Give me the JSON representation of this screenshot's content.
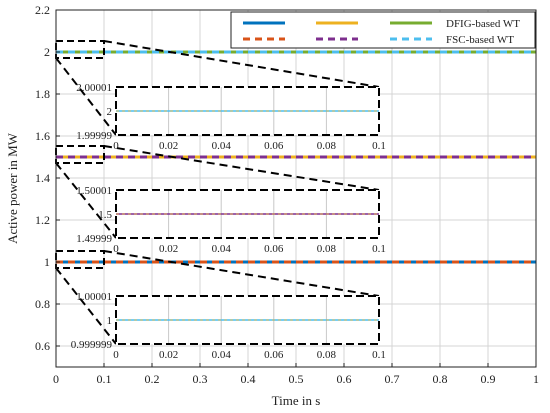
{
  "chart_data": {
    "type": "line",
    "xlabel": "Time in s",
    "ylabel": "Active power in MW",
    "xlim": [
      0,
      1
    ],
    "ylim": [
      0.5,
      2.2
    ],
    "x_ticks": [
      "0",
      "0.1",
      "0.2",
      "0.3",
      "0.4",
      "0.5",
      "0.6",
      "0.7",
      "0.8",
      "0.9",
      "1"
    ],
    "y_ticks": [
      "0.6",
      "0.8",
      "1",
      "1.2",
      "1.4",
      "1.6",
      "1.8",
      "2",
      "2.2"
    ],
    "grid": true,
    "legend_position": "top-right",
    "legend": {
      "entries": [
        {
          "color": "#0072bd",
          "dash": "solid",
          "label": ""
        },
        {
          "color": "#edb120",
          "dash": "solid",
          "label": ""
        },
        {
          "color": "#77ac30",
          "dash": "solid",
          "label": "DFIG-based WT"
        },
        {
          "color": "#d95319",
          "dash": "dashed",
          "label": ""
        },
        {
          "color": "#7e2f8e",
          "dash": "dashed",
          "label": ""
        },
        {
          "color": "#4dbeee",
          "dash": "dashed",
          "label": "FSC-based WT"
        }
      ]
    },
    "series": [
      {
        "level": 1.0,
        "solid_color": "#0072bd",
        "dashed_color": "#d95319",
        "x": [
          0,
          1
        ],
        "y": [
          1.0,
          1.0
        ]
      },
      {
        "level": 1.5,
        "solid_color": "#edb120",
        "dashed_color": "#7e2f8e",
        "x": [
          0,
          1
        ],
        "y": [
          1.5,
          1.5
        ]
      },
      {
        "level": 2.0,
        "solid_color": "#77ac30",
        "dashed_color": "#4dbeee",
        "x": [
          0,
          1
        ],
        "y": [
          2.0,
          2.0
        ]
      }
    ],
    "insets": [
      {
        "level": 2.0,
        "zoom_x": [
          0,
          0.1
        ],
        "y_ticks": [
          "2.00001",
          "2",
          "1.99999"
        ],
        "x_ticks": [
          "0",
          "0.02",
          "0.04",
          "0.06",
          "0.08",
          "0.1"
        ],
        "line_color": "#4dbeee"
      },
      {
        "level": 1.5,
        "zoom_x": [
          0,
          0.1
        ],
        "y_ticks": [
          "1.50001",
          "1.5",
          "1.49999"
        ],
        "x_ticks": [
          "0",
          "0.02",
          "0.04",
          "0.06",
          "0.08",
          "0.1"
        ],
        "line_color": "#7e2f8e"
      },
      {
        "level": 1.0,
        "zoom_x": [
          0,
          0.1
        ],
        "y_ticks": [
          "1.00001",
          "1",
          "0.999999"
        ],
        "x_ticks": [
          "0",
          "0.02",
          "0.04",
          "0.06",
          "0.08",
          "0.1"
        ],
        "line_color": "#4dbeee"
      }
    ]
  }
}
